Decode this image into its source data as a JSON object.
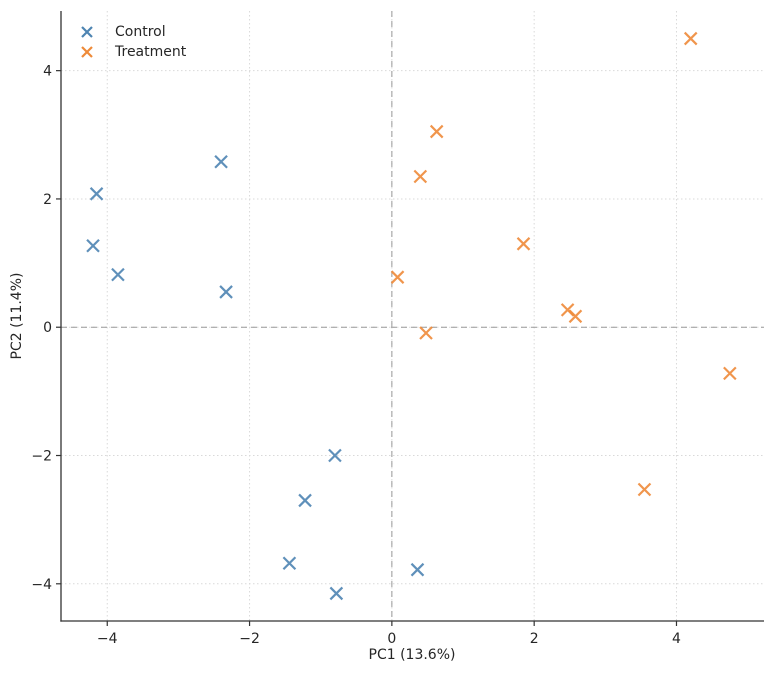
{
  "chart_data": {
    "type": "scatter",
    "title": "",
    "xlabel": "PC1 (13.6%)",
    "ylabel": "PC2 (11.4%)",
    "xlim": [
      -4.65,
      5.23
    ],
    "ylim": [
      -4.58,
      4.93
    ],
    "xticks": [
      -4,
      -2,
      0,
      2,
      4
    ],
    "yticks": [
      -4,
      -2,
      0,
      2,
      4
    ],
    "xtick_labels": [
      "−4",
      "−2",
      "0",
      "2",
      "4"
    ],
    "ytick_labels": [
      "−4",
      "−2",
      "0",
      "2",
      "4"
    ],
    "grid": true,
    "grid_style": "dotted",
    "zero_lines": true,
    "legend_position": "upper-left",
    "legend_frame": false,
    "series": [
      {
        "name": "Control",
        "color": "#4e84b2",
        "marker": "x",
        "points": [
          [
            -4.15,
            2.08
          ],
          [
            -4.2,
            1.27
          ],
          [
            -3.85,
            0.82
          ],
          [
            -2.4,
            2.58
          ],
          [
            -2.33,
            0.55
          ],
          [
            -0.8,
            -2.0
          ],
          [
            -1.22,
            -2.7
          ],
          [
            -1.44,
            -3.68
          ],
          [
            -0.78,
            -4.15
          ],
          [
            0.36,
            -3.78
          ]
        ]
      },
      {
        "name": "Treatment",
        "color": "#ee8a38",
        "marker": "x",
        "points": [
          [
            0.63,
            3.05
          ],
          [
            0.4,
            2.35
          ],
          [
            1.85,
            1.3
          ],
          [
            0.08,
            0.78
          ],
          [
            2.47,
            0.27
          ],
          [
            2.58,
            0.17
          ],
          [
            0.48,
            -0.09
          ],
          [
            4.2,
            4.5
          ],
          [
            4.75,
            -0.72
          ],
          [
            3.55,
            -2.53
          ]
        ]
      }
    ],
    "colors": {
      "background": "#ffffff",
      "grid": "#d9d9d9",
      "zero_line": "#999999",
      "spine": "#333333",
      "tick_label": "#262626",
      "text": "#262626"
    }
  }
}
